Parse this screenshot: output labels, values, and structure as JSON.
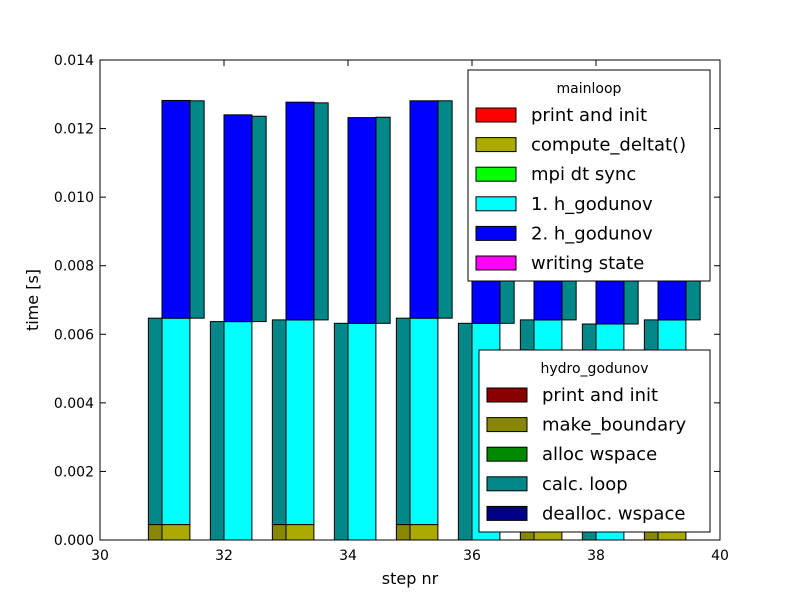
{
  "chart_data": {
    "type": "bar",
    "xlabel": "step nr",
    "ylabel": "time [s]",
    "xlim": [
      30,
      40
    ],
    "ylim": [
      0,
      0.014
    ],
    "xticks": [
      "30",
      "32",
      "34",
      "36",
      "38",
      "40"
    ],
    "yticks": [
      "0.000",
      "0.002",
      "0.004",
      "0.006",
      "0.008",
      "0.010",
      "0.012",
      "0.014"
    ],
    "steps": [
      31,
      32,
      33,
      34,
      35,
      36,
      37,
      38,
      39
    ],
    "mainloop": {
      "title": "mainloop",
      "series": [
        {
          "name": "print and init",
          "color": "#ff0000",
          "values": [
            0,
            0,
            0,
            0,
            0,
            0,
            0,
            0,
            0
          ]
        },
        {
          "name": "compute_deltat()",
          "color": "#aaaa00",
          "values": [
            0.00045,
            0.0,
            0.00045,
            0.0,
            0.00045,
            0.0,
            0.00045,
            0.0,
            0.00045
          ]
        },
        {
          "name": "mpi dt sync",
          "color": "#00ff00",
          "values": [
            0,
            0,
            0,
            0,
            0,
            0,
            0,
            0,
            0
          ]
        },
        {
          "name": "1. h_godunov",
          "color": "#00ffff",
          "values": [
            0.00602,
            0.00637,
            0.00597,
            0.00632,
            0.00602,
            0.00632,
            0.00597,
            0.0063,
            0.00597
          ]
        },
        {
          "name": "2. h_godunov",
          "color": "#0000ff",
          "values": [
            0.00635,
            0.00603,
            0.00635,
            0.006,
            0.00634,
            0.00598,
            0.00596,
            0.00592,
            0.00591
          ]
        },
        {
          "name": "writing state",
          "color": "#ff00ff",
          "values": [
            0,
            0,
            0,
            0,
            0,
            0,
            0,
            0,
            0
          ]
        }
      ]
    },
    "hydro_godunov": {
      "title": "hydro_godunov",
      "series": [
        {
          "name": "print and init",
          "color": "#880000",
          "values": [
            0,
            0,
            0,
            0,
            0,
            0,
            0,
            0,
            0
          ]
        },
        {
          "name": "make_boundary",
          "color": "#888800",
          "values": [
            0.00045,
            0,
            0.00045,
            0,
            0.00045,
            0,
            0.00045,
            0,
            0.00045
          ]
        },
        {
          "name": "alloc wspace",
          "color": "#008800",
          "values": [
            0,
            0,
            0,
            0,
            0,
            0,
            0,
            0,
            0
          ]
        },
        {
          "name": "calc. loop",
          "color": "#008888",
          "values": [
            0.00602,
            0.00637,
            0.00597,
            0.00632,
            0.00602,
            0.00632,
            0.00597,
            0.0063,
            0.00597
          ]
        },
        {
          "name": "dealloc. wspace",
          "color": "#000088",
          "values": [
            0,
            0,
            0,
            0,
            0,
            0,
            0,
            0,
            0
          ]
        }
      ],
      "second_calc_loop": [
        0.00634,
        0.00599,
        0.00633,
        0.00601,
        0.00634,
        0.00598,
        0.00596,
        0.00592,
        0.00591
      ]
    }
  }
}
